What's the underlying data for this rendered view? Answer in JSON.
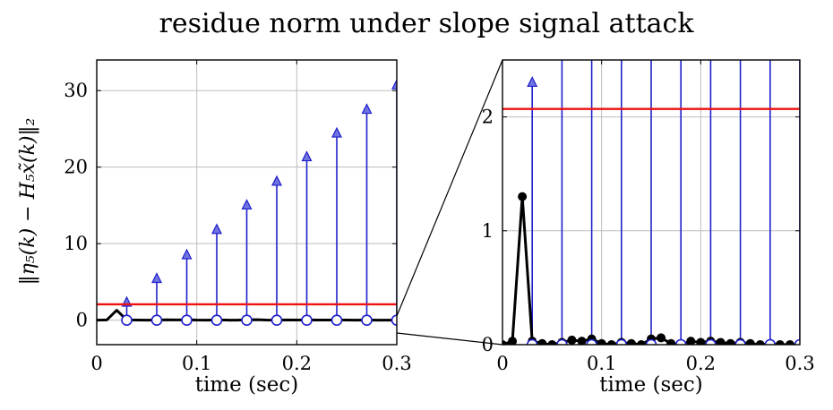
{
  "figure": {
    "title": "residue norm under slope signal attack",
    "ylabel": "‖η₅(k) − H₅x̃(k)‖₂"
  },
  "colors": {
    "attack": "#1f1fcc",
    "attack_marker": "#6f74e0",
    "threshold": "#ee1111",
    "residue": "#000000",
    "grid": "#bdbdbd"
  },
  "chart_data": [
    {
      "type": "stem",
      "xlabel": "time (sec)",
      "xlim": [
        0,
        0.3
      ],
      "ylim": [
        -3.2,
        34
      ],
      "xticks": [
        0,
        0.1,
        0.2,
        0.3
      ],
      "xtick_labels": [
        "0",
        "0.1",
        "0.2",
        "0.3"
      ],
      "yticks": [
        0,
        10,
        20,
        30
      ],
      "ytick_labels": [
        "0",
        "10",
        "20",
        "30"
      ],
      "grid": true,
      "threshold": 2.07,
      "attack": {
        "x": [
          0.03,
          0.06,
          0.09,
          0.12,
          0.15,
          0.18,
          0.21,
          0.24,
          0.27,
          0.3
        ],
        "y": [
          2.3,
          5.4,
          8.5,
          11.8,
          15.0,
          18.1,
          21.3,
          24.4,
          27.5,
          30.7
        ]
      },
      "residue": {
        "x": [
          0,
          0.01,
          0.02,
          0.03,
          0.04,
          0.05,
          0.06,
          0.07,
          0.08,
          0.09,
          0.1,
          0.11,
          0.12,
          0.13,
          0.14,
          0.15,
          0.16,
          0.17,
          0.18,
          0.19,
          0.2,
          0.21,
          0.22,
          0.23,
          0.24,
          0.25,
          0.26,
          0.27,
          0.28,
          0.29,
          0.3
        ],
        "y": [
          0,
          0.03,
          1.3,
          0.03,
          0.01,
          0.0,
          0.02,
          0.04,
          0.03,
          0.05,
          0.01,
          0.0,
          0.02,
          0.01,
          0.0,
          0.05,
          0.06,
          0.01,
          0.0,
          0.03,
          0.02,
          0.03,
          0.02,
          0.01,
          0.02,
          0.01,
          0.0,
          0.01,
          0.0,
          0.0,
          0.0
        ]
      }
    },
    {
      "type": "stem",
      "xlabel": "time (sec)",
      "xlim": [
        0,
        0.3
      ],
      "ylim": [
        0,
        2.5
      ],
      "xticks": [
        0,
        0.1,
        0.2,
        0.3
      ],
      "xtick_labels": [
        "0",
        "0.1",
        "0.2",
        "0.3"
      ],
      "yticks": [
        0,
        1,
        2
      ],
      "ytick_labels": [
        "0",
        "1",
        "2"
      ],
      "grid": true,
      "threshold": 2.07,
      "attack": {
        "x": [
          0.03,
          0.06,
          0.09,
          0.12,
          0.15,
          0.18,
          0.21,
          0.24,
          0.27,
          0.3
        ],
        "y": [
          2.3,
          5.4,
          8.5,
          11.8,
          15.0,
          18.1,
          21.3,
          24.4,
          27.5,
          30.7
        ]
      },
      "residue": {
        "x": [
          0,
          0.01,
          0.02,
          0.03,
          0.04,
          0.05,
          0.06,
          0.07,
          0.08,
          0.09,
          0.1,
          0.11,
          0.12,
          0.13,
          0.14,
          0.15,
          0.16,
          0.17,
          0.18,
          0.19,
          0.2,
          0.21,
          0.22,
          0.23,
          0.24,
          0.25,
          0.26,
          0.27,
          0.28,
          0.29,
          0.3
        ],
        "y": [
          0,
          0.03,
          1.3,
          0.03,
          0.01,
          0.0,
          0.02,
          0.04,
          0.03,
          0.05,
          0.01,
          0.0,
          0.02,
          0.01,
          0.0,
          0.05,
          0.06,
          0.01,
          0.0,
          0.03,
          0.02,
          0.03,
          0.02,
          0.01,
          0.02,
          0.01,
          0.0,
          0.01,
          0.0,
          0.0,
          0.0
        ]
      }
    }
  ]
}
